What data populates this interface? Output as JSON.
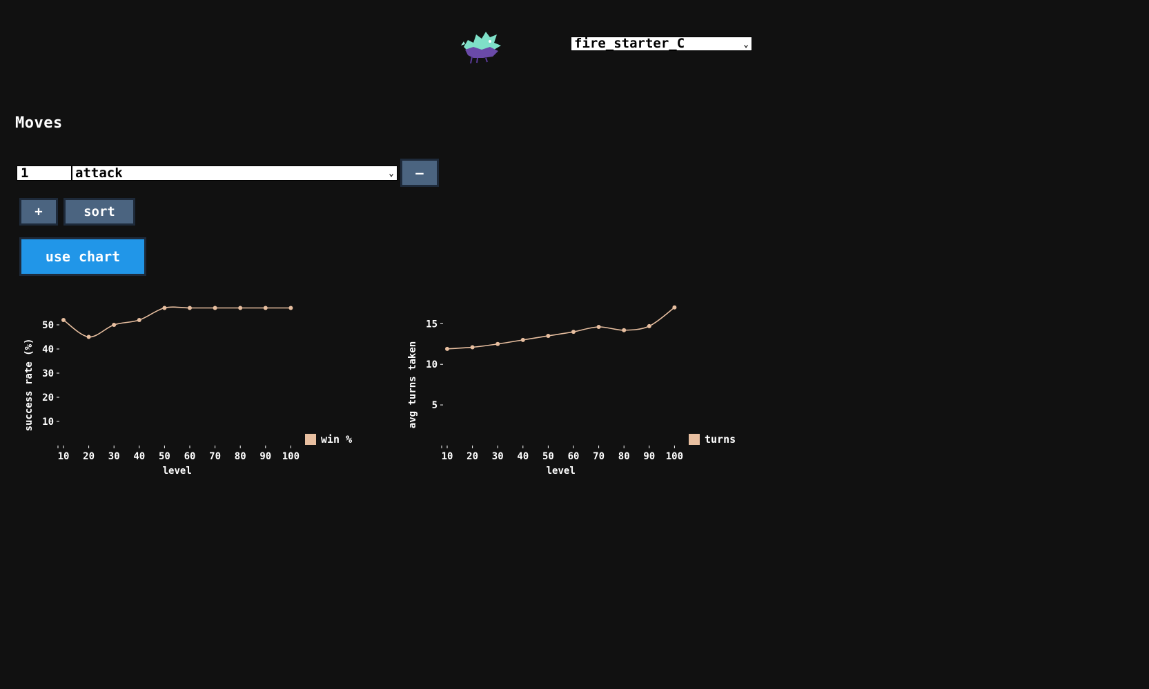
{
  "header": {
    "sprite_icon": "dragon-sprite-icon",
    "starter_value": "fire_starter_C"
  },
  "moves": {
    "title": "Moves",
    "rows": [
      {
        "number": "1",
        "move": "attack"
      }
    ],
    "remove_label": "–",
    "add_label": "+",
    "sort_label": "sort",
    "use_chart_label": "use chart"
  },
  "colors": {
    "background": "#111111",
    "button": "#4b6480",
    "primary_button": "#2196e8",
    "line": "#e8bfa0"
  },
  "chart_data": [
    {
      "type": "line",
      "x": [
        10,
        20,
        30,
        40,
        50,
        60,
        70,
        80,
        90,
        100
      ],
      "series": [
        {
          "name": "win %",
          "values": [
            52,
            45,
            50,
            52,
            57,
            57,
            57,
            57,
            57,
            57
          ]
        }
      ],
      "xlabel": "level",
      "ylabel": "success rate (%)",
      "yticks": [
        10,
        20,
        30,
        40,
        50
      ],
      "ylim": [
        0,
        57
      ],
      "grid": false,
      "legend": "bottom-right"
    },
    {
      "type": "line",
      "x": [
        10,
        20,
        30,
        40,
        50,
        60,
        70,
        80,
        90,
        100
      ],
      "series": [
        {
          "name": "turns",
          "values": [
            11.9,
            12.1,
            12.5,
            13.0,
            13.5,
            14.0,
            14.6,
            14.2,
            14.7,
            17.0
          ]
        }
      ],
      "xlabel": "level",
      "ylabel": "avg turns taken",
      "yticks": [
        5,
        10,
        15
      ],
      "ylim": [
        0,
        17
      ],
      "grid": false,
      "legend": "bottom-right"
    }
  ]
}
